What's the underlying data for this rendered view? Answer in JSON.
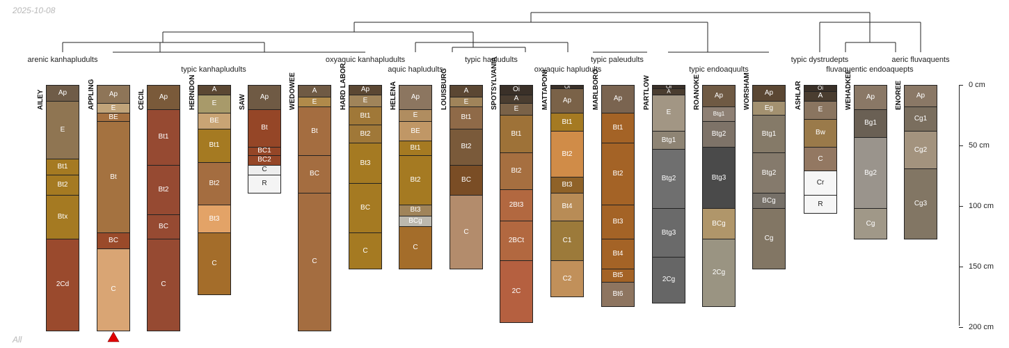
{
  "header": {
    "date": "2025-10-08"
  },
  "footer": {
    "label": "All"
  },
  "taxa_labels": [
    "arenic kanhapludults",
    "typic kanhapludults",
    "oxyaquic kanhapludults",
    "aquic hapludults",
    "typic hapludults",
    "oxyaquic hapludults",
    "typic paleudults",
    "typic endoaquults",
    "typic dystrudepts",
    "fluvaquentic endoaquepts",
    "aeric fluvaquents"
  ],
  "depth_axis": {
    "unit": "cm",
    "max_depth": 200,
    "ticks": [
      {
        "value": 0,
        "label": "0 cm"
      },
      {
        "value": 50,
        "label": "50 cm"
      },
      {
        "value": 100,
        "label": "100 cm"
      },
      {
        "value": 150,
        "label": "150 cm"
      },
      {
        "value": 200,
        "label": "200 cm"
      }
    ]
  },
  "marker": {
    "profile": "APPLING",
    "color": "#e00000"
  },
  "profiles": [
    {
      "name": "AILEY",
      "horizons": [
        {
          "name": "Ap",
          "top": 0,
          "bottom": 13,
          "color": "#6f5c48"
        },
        {
          "name": "E",
          "top": 13,
          "bottom": 61,
          "color": "#8f7552"
        },
        {
          "name": "Bt1",
          "top": 61,
          "bottom": 74,
          "color": "#a57a22"
        },
        {
          "name": "Bt2",
          "top": 74,
          "bottom": 91,
          "color": "#a57a22"
        },
        {
          "name": "Btx",
          "top": 91,
          "bottom": 127,
          "color": "#a57a22"
        },
        {
          "name": "2Cd",
          "top": 127,
          "bottom": 203,
          "color": "#9a4a2d"
        }
      ]
    },
    {
      "name": "APPLING",
      "horizons": [
        {
          "name": "Ap",
          "top": 0,
          "bottom": 15,
          "color": "#8e7558"
        },
        {
          "name": "E",
          "top": 15,
          "bottom": 23,
          "color": "#c1a47a"
        },
        {
          "name": "BE",
          "top": 23,
          "bottom": 30,
          "color": "#a57040"
        },
        {
          "name": "Bt",
          "top": 30,
          "bottom": 122,
          "color": "#a47240"
        },
        {
          "name": "BC",
          "top": 122,
          "bottom": 135,
          "color": "#9a4a2a"
        },
        {
          "name": "C",
          "top": 135,
          "bottom": 203,
          "color": "#d9a574"
        }
      ]
    },
    {
      "name": "CECIL",
      "horizons": [
        {
          "name": "Ap",
          "top": 0,
          "bottom": 20,
          "color": "#7a5a3a"
        },
        {
          "name": "Bt1",
          "top": 20,
          "bottom": 66,
          "color": "#964a32"
        },
        {
          "name": "Bt2",
          "top": 66,
          "bottom": 107,
          "color": "#964a32"
        },
        {
          "name": "BC",
          "top": 107,
          "bottom": 127,
          "color": "#964a32"
        },
        {
          "name": "C",
          "top": 127,
          "bottom": 203,
          "color": "#964a32"
        }
      ]
    },
    {
      "name": "HERNDON",
      "horizons": [
        {
          "name": "A",
          "top": 0,
          "bottom": 8,
          "color": "#5b4733"
        },
        {
          "name": "E",
          "top": 8,
          "bottom": 23,
          "color": "#a89a6a"
        },
        {
          "name": "BE",
          "top": 23,
          "bottom": 36,
          "color": "#c9a474"
        },
        {
          "name": "Bt1",
          "top": 36,
          "bottom": 64,
          "color": "#a57a22"
        },
        {
          "name": "Bt2",
          "top": 64,
          "bottom": 99,
          "color": "#a46d40"
        },
        {
          "name": "Bt3",
          "top": 99,
          "bottom": 122,
          "color": "#e3a367"
        },
        {
          "name": "C",
          "top": 122,
          "bottom": 173,
          "color": "#a46d2a"
        }
      ]
    },
    {
      "name": "SAW",
      "horizons": [
        {
          "name": "Ap",
          "top": 0,
          "bottom": 20,
          "color": "#6f5a44"
        },
        {
          "name": "Bt",
          "top": 20,
          "bottom": 51,
          "color": "#954627"
        },
        {
          "name": "BC1",
          "top": 51,
          "bottom": 58,
          "color": "#954627"
        },
        {
          "name": "BC2",
          "top": 58,
          "bottom": 66,
          "color": "#954627"
        },
        {
          "name": "C",
          "top": 66,
          "bottom": 74,
          "color": "#eeeeee"
        },
        {
          "name": "R",
          "top": 74,
          "bottom": 89,
          "color": "#f4f4f4"
        }
      ]
    },
    {
      "name": "WEDOWEE",
      "horizons": [
        {
          "name": "A",
          "top": 0,
          "bottom": 10,
          "color": "#6f5a44"
        },
        {
          "name": "E",
          "top": 10,
          "bottom": 18,
          "color": "#b08a4a"
        },
        {
          "name": "Bt",
          "top": 18,
          "bottom": 58,
          "color": "#a46d40"
        },
        {
          "name": "BC",
          "top": 58,
          "bottom": 89,
          "color": "#a46d40"
        },
        {
          "name": "C",
          "top": 89,
          "bottom": 203,
          "color": "#a46d40"
        }
      ]
    },
    {
      "name": "HARD LABOR",
      "horizons": [
        {
          "name": "Ap",
          "top": 0,
          "bottom": 8,
          "color": "#5b4733"
        },
        {
          "name": "E",
          "top": 8,
          "bottom": 18,
          "color": "#a0845a"
        },
        {
          "name": "Bt1",
          "top": 18,
          "bottom": 33,
          "color": "#a07838"
        },
        {
          "name": "Bt2",
          "top": 33,
          "bottom": 48,
          "color": "#a07838"
        },
        {
          "name": "Bt3",
          "top": 48,
          "bottom": 81,
          "color": "#a57a22"
        },
        {
          "name": "BC",
          "top": 81,
          "bottom": 122,
          "color": "#a57a22"
        },
        {
          "name": "C",
          "top": 122,
          "bottom": 152,
          "color": "#a57a22"
        }
      ]
    },
    {
      "name": "HELENA",
      "horizons": [
        {
          "name": "Ap",
          "top": 0,
          "bottom": 20,
          "color": "#8c7660"
        },
        {
          "name": "E",
          "top": 20,
          "bottom": 30,
          "color": "#b08d60"
        },
        {
          "name": "BE",
          "top": 30,
          "bottom": 46,
          "color": "#c09766"
        },
        {
          "name": "Bt1",
          "top": 46,
          "bottom": 58,
          "color": "#a57a22"
        },
        {
          "name": "Bt2",
          "top": 58,
          "bottom": 99,
          "color": "#a57a22"
        },
        {
          "name": "Bt3",
          "top": 99,
          "bottom": 108,
          "color": "#a0845a"
        },
        {
          "name": "BCg",
          "top": 108,
          "bottom": 117,
          "color": "#bcb8ae"
        },
        {
          "name": "C",
          "top": 117,
          "bottom": 152,
          "color": "#a46d2a"
        }
      ]
    },
    {
      "name": "LOUISBURG",
      "horizons": [
        {
          "name": "A",
          "top": 0,
          "bottom": 10,
          "color": "#5b4733"
        },
        {
          "name": "E",
          "top": 10,
          "bottom": 18,
          "color": "#a0845a"
        },
        {
          "name": "Bt1",
          "top": 18,
          "bottom": 36,
          "color": "#8f6a48"
        },
        {
          "name": "Bt2",
          "top": 36,
          "bottom": 66,
          "color": "#7a5a3a"
        },
        {
          "name": "BC",
          "top": 66,
          "bottom": 91,
          "color": "#7a4d25"
        },
        {
          "name": "C",
          "top": 91,
          "bottom": 152,
          "color": "#b38c6c"
        }
      ]
    },
    {
      "name": "SPOTSYLVANIA",
      "horizons": [
        {
          "name": "Oi",
          "top": 0,
          "bottom": 8,
          "color": "#3a3028"
        },
        {
          "name": "A",
          "top": 8,
          "bottom": 15,
          "color": "#4a3d30"
        },
        {
          "name": "E",
          "top": 15,
          "bottom": 25,
          "color": "#7a6248"
        },
        {
          "name": "Bt1",
          "top": 25,
          "bottom": 56,
          "color": "#9e7238"
        },
        {
          "name": "Bt2",
          "top": 56,
          "bottom": 86,
          "color": "#a66f40"
        },
        {
          "name": "2Bt3",
          "top": 86,
          "bottom": 112,
          "color": "#b26840"
        },
        {
          "name": "2BCt",
          "top": 112,
          "bottom": 145,
          "color": "#b26840"
        },
        {
          "name": "2C",
          "top": 145,
          "bottom": 196,
          "color": "#b56040"
        }
      ]
    },
    {
      "name": "MATTAPONI",
      "horizons": [
        {
          "name": "Oi",
          "top": 0,
          "bottom": 3,
          "color": "#3a3028"
        },
        {
          "name": "Ap",
          "top": 3,
          "bottom": 23,
          "color": "#7a6248"
        },
        {
          "name": "Bt1",
          "top": 23,
          "bottom": 38,
          "color": "#a57a22"
        },
        {
          "name": "Bt2",
          "top": 38,
          "bottom": 76,
          "color": "#d08c48"
        },
        {
          "name": "Bt3",
          "top": 76,
          "bottom": 89,
          "color": "#8f6228"
        },
        {
          "name": "Bt4",
          "top": 89,
          "bottom": 112,
          "color": "#b88c56"
        },
        {
          "name": "C1",
          "top": 112,
          "bottom": 145,
          "color": "#9c7a3a"
        },
        {
          "name": "C2",
          "top": 145,
          "bottom": 175,
          "color": "#c1905a"
        }
      ]
    },
    {
      "name": "MARLBORO",
      "horizons": [
        {
          "name": "Ap",
          "top": 0,
          "bottom": 23,
          "color": "#7a6450"
        },
        {
          "name": "Bt1",
          "top": 23,
          "bottom": 48,
          "color": "#a46326"
        },
        {
          "name": "Bt2",
          "top": 48,
          "bottom": 99,
          "color": "#a46326"
        },
        {
          "name": "Bt3",
          "top": 99,
          "bottom": 127,
          "color": "#a46326"
        },
        {
          "name": "Bt4",
          "top": 127,
          "bottom": 152,
          "color": "#a46326"
        },
        {
          "name": "Bt5",
          "top": 152,
          "bottom": 163,
          "color": "#a46326"
        },
        {
          "name": "Bt6",
          "top": 163,
          "bottom": 183,
          "color": "#8e7560"
        }
      ]
    },
    {
      "name": "PARTLOW",
      "horizons": [
        {
          "name": "Oi",
          "top": 0,
          "bottom": 3,
          "color": "#3a3028"
        },
        {
          "name": "A",
          "top": 3,
          "bottom": 8,
          "color": "#4a3d30"
        },
        {
          "name": "E",
          "top": 8,
          "bottom": 38,
          "color": "#a29684"
        },
        {
          "name": "Btg1",
          "top": 38,
          "bottom": 53,
          "color": "#8e8474"
        },
        {
          "name": "Btg2",
          "top": 53,
          "bottom": 102,
          "color": "#6f6f6f"
        },
        {
          "name": "Btg3",
          "top": 102,
          "bottom": 142,
          "color": "#6a6a6a"
        },
        {
          "name": "2Cg",
          "top": 142,
          "bottom": 180,
          "color": "#666666"
        }
      ]
    },
    {
      "name": "ROANOKE",
      "horizons": [
        {
          "name": "Ap",
          "top": 0,
          "bottom": 18,
          "color": "#6f5a44"
        },
        {
          "name": "Btg1",
          "top": 18,
          "bottom": 30,
          "color": "#8e8074"
        },
        {
          "name": "Btg2",
          "top": 30,
          "bottom": 51,
          "color": "#7e7368"
        },
        {
          "name": "Btg3",
          "top": 51,
          "bottom": 102,
          "color": "#4a4a4a"
        },
        {
          "name": "BCg",
          "top": 102,
          "bottom": 127,
          "color": "#b0966a"
        },
        {
          "name": "2Cg",
          "top": 127,
          "bottom": 183,
          "color": "#9a9482"
        }
      ]
    },
    {
      "name": "WORSHAM",
      "horizons": [
        {
          "name": "Ap",
          "top": 0,
          "bottom": 13,
          "color": "#5b4733"
        },
        {
          "name": "Eg",
          "top": 13,
          "bottom": 25,
          "color": "#a39170"
        },
        {
          "name": "Btg1",
          "top": 25,
          "bottom": 56,
          "color": "#857a68"
        },
        {
          "name": "Btg2",
          "top": 56,
          "bottom": 89,
          "color": "#857a6c"
        },
        {
          "name": "BCg",
          "top": 89,
          "bottom": 102,
          "color": "#767068"
        },
        {
          "name": "Cg",
          "top": 102,
          "bottom": 152,
          "color": "#827664"
        }
      ]
    },
    {
      "name": "ASHLAR",
      "horizons": [
        {
          "name": "Oi",
          "top": 0,
          "bottom": 5,
          "color": "#3a3028"
        },
        {
          "name": "A",
          "top": 5,
          "bottom": 13,
          "color": "#4a3d30"
        },
        {
          "name": "E",
          "top": 13,
          "bottom": 28,
          "color": "#8a7560"
        },
        {
          "name": "Bw",
          "top": 28,
          "bottom": 51,
          "color": "#9a7a4a"
        },
        {
          "name": "C",
          "top": 51,
          "bottom": 71,
          "color": "#937862"
        },
        {
          "name": "Cr",
          "top": 71,
          "bottom": 91,
          "color": "#f6f6f6"
        },
        {
          "name": "R",
          "top": 91,
          "bottom": 106,
          "color": "#f6f6f6"
        }
      ]
    },
    {
      "name": "WEHADKEE",
      "horizons": [
        {
          "name": "Ap",
          "top": 0,
          "bottom": 20,
          "color": "#8a7866"
        },
        {
          "name": "Bg1",
          "top": 20,
          "bottom": 43,
          "color": "#6a6054"
        },
        {
          "name": "Bg2",
          "top": 43,
          "bottom": 102,
          "color": "#9a948c"
        },
        {
          "name": "Cg",
          "top": 102,
          "bottom": 127,
          "color": "#a09888"
        }
      ]
    },
    {
      "name": "ENOREE",
      "horizons": [
        {
          "name": "Ap",
          "top": 0,
          "bottom": 18,
          "color": "#8a7866"
        },
        {
          "name": "Cg1",
          "top": 18,
          "bottom": 38,
          "color": "#7a6e5e"
        },
        {
          "name": "Cg2",
          "top": 38,
          "bottom": 69,
          "color": "#a3937e"
        },
        {
          "name": "Cg3",
          "top": 69,
          "bottom": 127,
          "color": "#827664"
        }
      ]
    }
  ]
}
